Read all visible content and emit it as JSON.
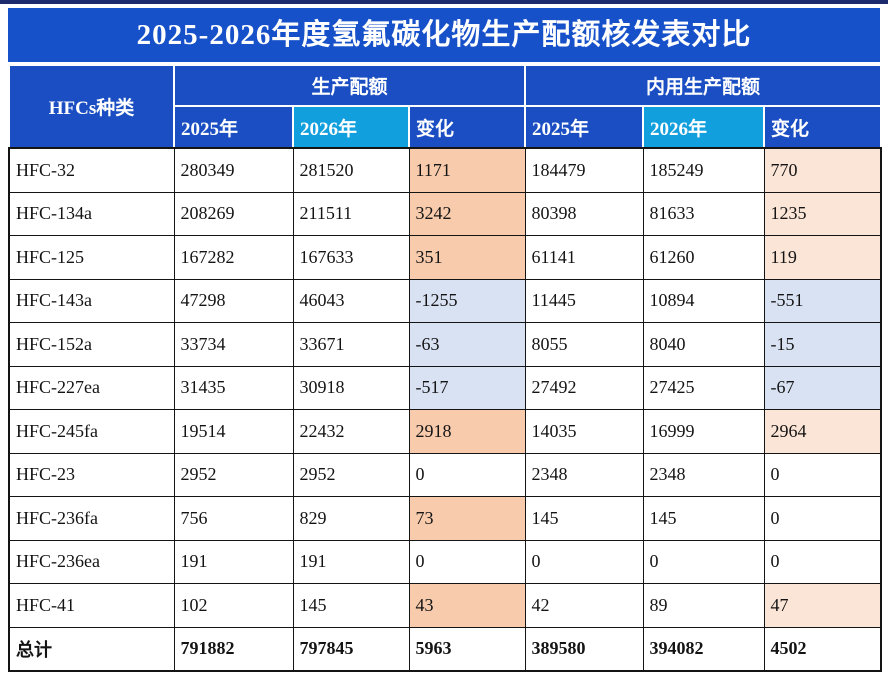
{
  "title": "2025-2026年度氢氟碳化物生产配额核发表对比",
  "table": {
    "col1_header": "HFCs种类",
    "group_headers": [
      {
        "label": "生产配额"
      },
      {
        "label": "内用生产配额"
      }
    ],
    "sub_headers": [
      "2025年",
      "2026年",
      "变化",
      "2025年",
      "2026年",
      "变化"
    ],
    "rows": [
      {
        "name": "HFC-32",
        "values": [
          "280349",
          "281520",
          "1171",
          "184479",
          "185249",
          "770"
        ],
        "chg1": "pos_strong",
        "chg2": "pos_light",
        "bold": false
      },
      {
        "name": "HFC-134a",
        "values": [
          "208269",
          "211511",
          "3242",
          "80398",
          "81633",
          "1235"
        ],
        "chg1": "pos_strong",
        "chg2": "pos_light",
        "bold": false
      },
      {
        "name": "HFC-125",
        "values": [
          "167282",
          "167633",
          "351",
          "61141",
          "61260",
          "119"
        ],
        "chg1": "pos_strong",
        "chg2": "pos_light",
        "bold": false
      },
      {
        "name": "HFC-143a",
        "values": [
          "47298",
          "46043",
          "-1255",
          "11445",
          "10894",
          "-551"
        ],
        "chg1": "neg",
        "chg2": "neg",
        "bold": false
      },
      {
        "name": "HFC-152a",
        "values": [
          "33734",
          "33671",
          "-63",
          "8055",
          "8040",
          "-15"
        ],
        "chg1": "neg",
        "chg2": "neg",
        "bold": false
      },
      {
        "name": "HFC-227ea",
        "values": [
          "31435",
          "30918",
          "-517",
          "27492",
          "27425",
          "-67"
        ],
        "chg1": "neg",
        "chg2": "neg",
        "bold": false
      },
      {
        "name": "HFC-245fa",
        "values": [
          "19514",
          "22432",
          "2918",
          "14035",
          "16999",
          "2964"
        ],
        "chg1": "pos_strong",
        "chg2": "pos_light",
        "bold": false
      },
      {
        "name": "HFC-23",
        "values": [
          "2952",
          "2952",
          "0",
          "2348",
          "2348",
          "0"
        ],
        "chg1": "none",
        "chg2": "none",
        "bold": false
      },
      {
        "name": "HFC-236fa",
        "values": [
          "756",
          "829",
          "73",
          "145",
          "145",
          "0"
        ],
        "chg1": "pos_strong",
        "chg2": "none",
        "bold": false
      },
      {
        "name": "HFC-236ea",
        "values": [
          "191",
          "191",
          "0",
          "0",
          "0",
          "0"
        ],
        "chg1": "none",
        "chg2": "none",
        "bold": false
      },
      {
        "name": "HFC-41",
        "values": [
          "102",
          "145",
          "43",
          "42",
          "89",
          "47"
        ],
        "chg1": "pos_strong",
        "chg2": "pos_light",
        "bold": false
      },
      {
        "name": "总计",
        "values": [
          "791882",
          "797845",
          "5963",
          "389580",
          "394082",
          "4502"
        ],
        "chg1": "none",
        "chg2": "none",
        "bold": true
      }
    ]
  },
  "colors": {
    "title_bg": "#1751C9",
    "header_bg": "#1A4EC2",
    "cyan_bg": "#129FDD",
    "pos_strong": "#F8CBAD",
    "pos_light": "#FBE5D6",
    "neg": "#D9E2F3",
    "top_strip": "#1B2B6E",
    "border_dark": "#141414"
  }
}
